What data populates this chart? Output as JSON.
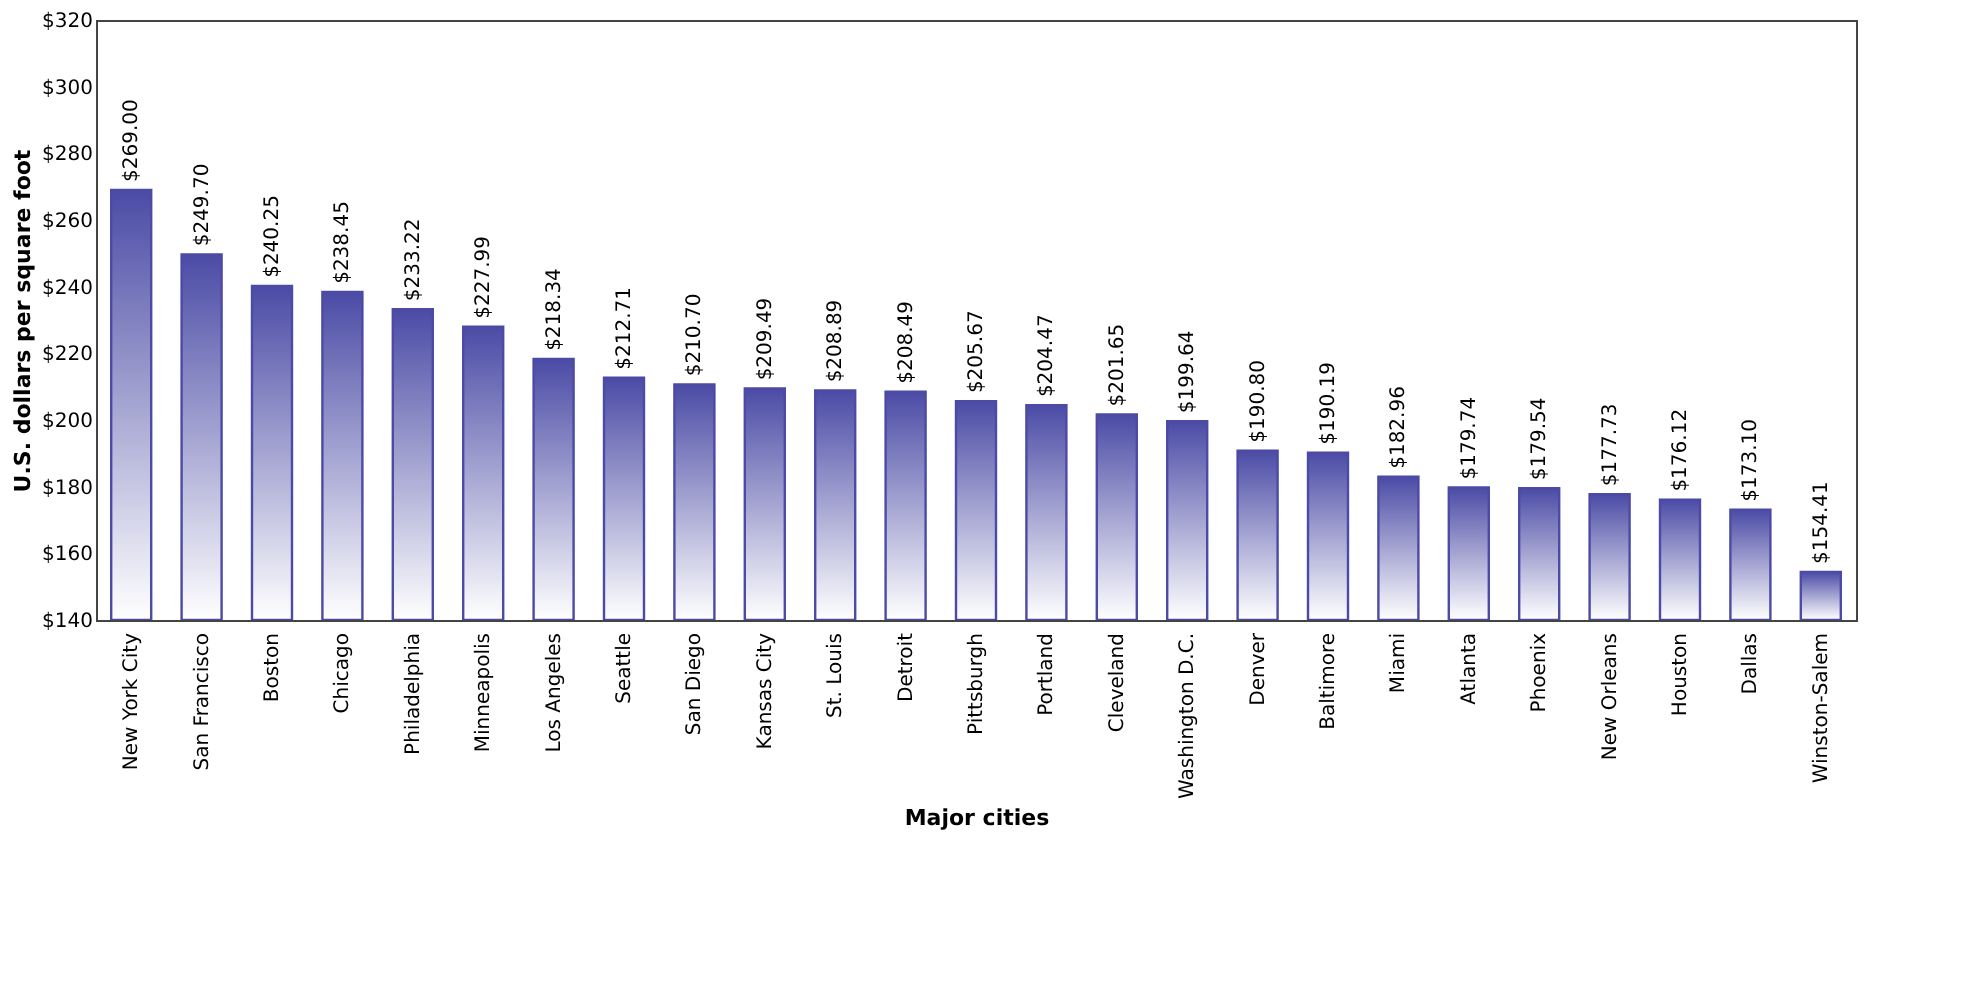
{
  "chart_data": {
    "type": "bar",
    "xlabel": "Major cities",
    "ylabel": "U.S. dollars per square foot",
    "categories": [
      "New York City",
      "San Francisco",
      "Boston",
      "Chicago",
      "Philadelphia",
      "Minneapolis",
      "Los Angeles",
      "Seattle",
      "San Diego",
      "Kansas City",
      "St. Louis",
      "Detroit",
      "Pittsburgh",
      "Portland",
      "Cleveland",
      "Washington D.C.",
      "Denver",
      "Baltimore",
      "Miami",
      "Atlanta",
      "Phoenix",
      "New Orleans",
      "Houston",
      "Dallas",
      "Winston-Salem"
    ],
    "series": [
      {
        "color": "#4b4ba6",
        "values": [
          269.0,
          249.7,
          240.25,
          238.45,
          233.22,
          227.99,
          218.34,
          212.71,
          210.7,
          209.49,
          208.89,
          208.49,
          205.67,
          204.47,
          201.65,
          199.64,
          190.8,
          190.19,
          182.96,
          179.74,
          179.54,
          177.73,
          176.12,
          173.1,
          154.41
        ],
        "value_labels": [
          "$269.00",
          "$249.70",
          "$240.25",
          "$238.45",
          "$233.22",
          "$227.99",
          "$218.34",
          "$212.71",
          "$210.70",
          "$209.49",
          "$208.89",
          "$208.49",
          "$205.67",
          "$204.47",
          "$201.65",
          "$199.64",
          "$190.80",
          "$190.19",
          "$182.96",
          "$179.74",
          "$179.54",
          "$177.73",
          "$176.12",
          "$173.10",
          "$154.41"
        ]
      }
    ],
    "ylim": [
      140,
      320
    ],
    "yticks": [
      {
        "value": 140,
        "label": "$140"
      },
      {
        "value": 160,
        "label": "$160"
      },
      {
        "value": 180,
        "label": "$180"
      },
      {
        "value": 200,
        "label": "$200"
      },
      {
        "value": 220,
        "label": "$220"
      },
      {
        "value": 240,
        "label": "$240"
      },
      {
        "value": 260,
        "label": "$260"
      },
      {
        "value": 280,
        "label": "$280"
      },
      {
        "value": 300,
        "label": "$300"
      },
      {
        "value": 320,
        "label": "$320"
      }
    ],
    "grid": false
  }
}
